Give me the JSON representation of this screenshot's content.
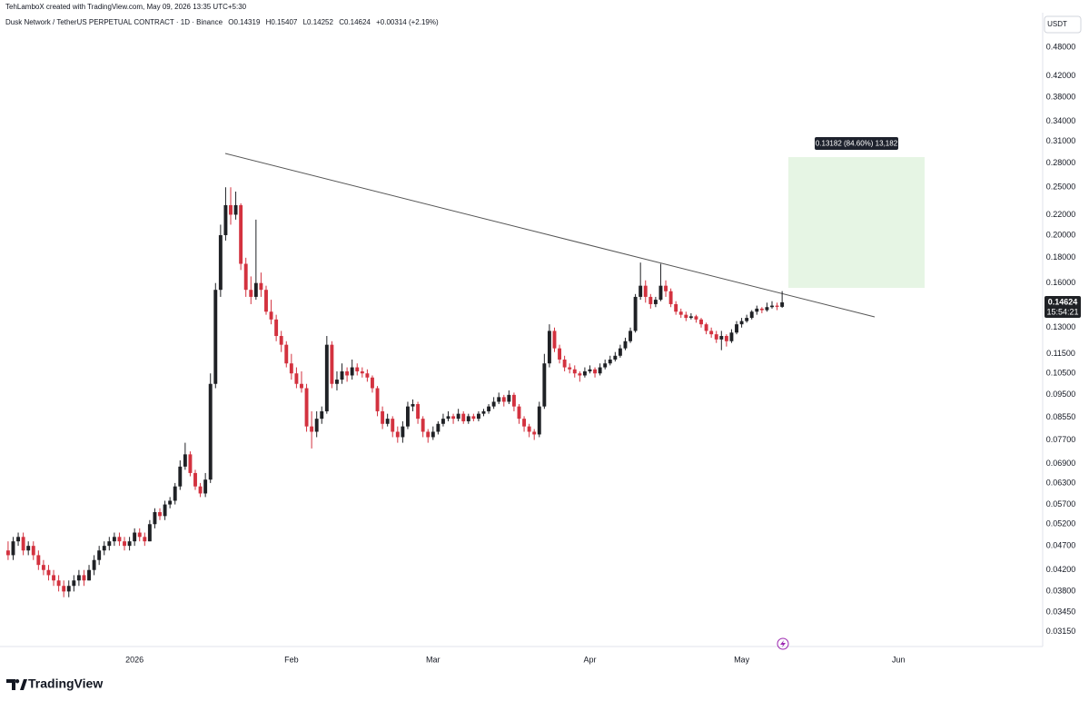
{
  "chart_data": {
    "type": "candlestick",
    "watermark": "TehLamboX created with TradingView.com, May 09, 2026 13:35 UTC+5:30",
    "title": "Dusk Network / TetherUS PERPETUAL CONTRACT · 1D · Binance",
    "legend_values": [
      "O0.14319",
      "H0.15407",
      "L0.14252",
      "C0.14624",
      "+0.00314 (+2.19%)"
    ],
    "currency": "USDT",
    "last_price_label": "0.14624",
    "countdown": "15:54:21",
    "measure_label": "0.13182 (84.60%) 13,182",
    "brand": "TradingView",
    "log_scale": true,
    "grid": false,
    "up_color": "#1f2125",
    "down_color": "#d3323f",
    "ylim": [
      0.0294,
      0.564
    ],
    "yticks": [
      {
        "value": 0.48,
        "label": "0.48000"
      },
      {
        "value": 0.42,
        "label": "0.42000"
      },
      {
        "value": 0.38,
        "label": "0.38000"
      },
      {
        "value": 0.34,
        "label": "0.34000"
      },
      {
        "value": 0.31,
        "label": "0.31000"
      },
      {
        "value": 0.28,
        "label": "0.28000"
      },
      {
        "value": 0.25,
        "label": "0.25000"
      },
      {
        "value": 0.22,
        "label": "0.22000"
      },
      {
        "value": 0.2,
        "label": "0.20000"
      },
      {
        "value": 0.18,
        "label": "0.18000"
      },
      {
        "value": 0.16,
        "label": "0.16000"
      },
      {
        "value": 0.13,
        "label": "0.13000"
      },
      {
        "value": 0.115,
        "label": "0.11500"
      },
      {
        "value": 0.105,
        "label": "0.10500"
      },
      {
        "value": 0.095,
        "label": "0.09500"
      },
      {
        "value": 0.0855,
        "label": "0.08550"
      },
      {
        "value": 0.077,
        "label": "0.07700"
      },
      {
        "value": 0.069,
        "label": "0.06900"
      },
      {
        "value": 0.063,
        "label": "0.06300"
      },
      {
        "value": 0.057,
        "label": "0.05700"
      },
      {
        "value": 0.052,
        "label": "0.05200"
      },
      {
        "value": 0.047,
        "label": "0.04700"
      },
      {
        "value": 0.042,
        "label": "0.04200"
      },
      {
        "value": 0.038,
        "label": "0.03800"
      },
      {
        "value": 0.0345,
        "label": "0.03450"
      },
      {
        "value": 0.0315,
        "label": "0.03150"
      }
    ],
    "xlim": [
      -1.6,
      204.5
    ],
    "xticks": [
      {
        "value": 25,
        "label": "2026"
      },
      {
        "value": 56,
        "label": "Feb"
      },
      {
        "value": 84,
        "label": "Mar"
      },
      {
        "value": 115,
        "label": "Apr"
      },
      {
        "value": 145,
        "label": "May"
      },
      {
        "value": 176,
        "label": "Jun"
      }
    ],
    "ohlc": [
      [
        0.046,
        0.048,
        0.044,
        0.045
      ],
      [
        0.045,
        0.049,
        0.044,
        0.048
      ],
      [
        0.048,
        0.05,
        0.047,
        0.049
      ],
      [
        0.049,
        0.05,
        0.045,
        0.046
      ],
      [
        0.046,
        0.048,
        0.045,
        0.047
      ],
      [
        0.047,
        0.048,
        0.044,
        0.045
      ],
      [
        0.045,
        0.046,
        0.042,
        0.043
      ],
      [
        0.043,
        0.044,
        0.041,
        0.042
      ],
      [
        0.042,
        0.043,
        0.04,
        0.041
      ],
      [
        0.041,
        0.042,
        0.039,
        0.04
      ],
      [
        0.04,
        0.041,
        0.038,
        0.039
      ],
      [
        0.039,
        0.04,
        0.037,
        0.038
      ],
      [
        0.038,
        0.04,
        0.037,
        0.039
      ],
      [
        0.039,
        0.041,
        0.038,
        0.04
      ],
      [
        0.04,
        0.042,
        0.039,
        0.041
      ],
      [
        0.041,
        0.042,
        0.039,
        0.04
      ],
      [
        0.04,
        0.043,
        0.04,
        0.042
      ],
      [
        0.042,
        0.045,
        0.041,
        0.044
      ],
      [
        0.044,
        0.047,
        0.043,
        0.046
      ],
      [
        0.046,
        0.048,
        0.045,
        0.047
      ],
      [
        0.047,
        0.049,
        0.046,
        0.048
      ],
      [
        0.048,
        0.05,
        0.047,
        0.049
      ],
      [
        0.049,
        0.05,
        0.047,
        0.048
      ],
      [
        0.048,
        0.049,
        0.046,
        0.047
      ],
      [
        0.047,
        0.049,
        0.046,
        0.048
      ],
      [
        0.048,
        0.051,
        0.047,
        0.05
      ],
      [
        0.05,
        0.051,
        0.048,
        0.049
      ],
      [
        0.049,
        0.05,
        0.047,
        0.048
      ],
      [
        0.048,
        0.053,
        0.048,
        0.052
      ],
      [
        0.052,
        0.056,
        0.051,
        0.055
      ],
      [
        0.055,
        0.056,
        0.053,
        0.054
      ],
      [
        0.054,
        0.058,
        0.053,
        0.057
      ],
      [
        0.057,
        0.059,
        0.056,
        0.058
      ],
      [
        0.058,
        0.063,
        0.057,
        0.062
      ],
      [
        0.062,
        0.07,
        0.061,
        0.068
      ],
      [
        0.068,
        0.076,
        0.067,
        0.072
      ],
      [
        0.072,
        0.073,
        0.065,
        0.066
      ],
      [
        0.066,
        0.067,
        0.061,
        0.062
      ],
      [
        0.062,
        0.063,
        0.059,
        0.06
      ],
      [
        0.06,
        0.066,
        0.059,
        0.064
      ],
      [
        0.064,
        0.105,
        0.063,
        0.1
      ],
      [
        0.1,
        0.16,
        0.098,
        0.155
      ],
      [
        0.155,
        0.21,
        0.15,
        0.2
      ],
      [
        0.2,
        0.25,
        0.195,
        0.23
      ],
      [
        0.23,
        0.25,
        0.21,
        0.22
      ],
      [
        0.22,
        0.245,
        0.215,
        0.23
      ],
      [
        0.23,
        0.232,
        0.17,
        0.175
      ],
      [
        0.175,
        0.18,
        0.15,
        0.155
      ],
      [
        0.155,
        0.165,
        0.145,
        0.15
      ],
      [
        0.15,
        0.215,
        0.148,
        0.16
      ],
      [
        0.16,
        0.168,
        0.15,
        0.155
      ],
      [
        0.155,
        0.158,
        0.138,
        0.14
      ],
      [
        0.14,
        0.148,
        0.132,
        0.135
      ],
      [
        0.135,
        0.138,
        0.122,
        0.125
      ],
      [
        0.125,
        0.128,
        0.116,
        0.12
      ],
      [
        0.12,
        0.122,
        0.108,
        0.11
      ],
      [
        0.11,
        0.115,
        0.102,
        0.105
      ],
      [
        0.105,
        0.108,
        0.098,
        0.1
      ],
      [
        0.1,
        0.106,
        0.096,
        0.098
      ],
      [
        0.098,
        0.1,
        0.08,
        0.082
      ],
      [
        0.082,
        0.088,
        0.074,
        0.08
      ],
      [
        0.08,
        0.088,
        0.078,
        0.085
      ],
      [
        0.085,
        0.09,
        0.083,
        0.088
      ],
      [
        0.088,
        0.125,
        0.087,
        0.12
      ],
      [
        0.12,
        0.122,
        0.098,
        0.1
      ],
      [
        0.1,
        0.106,
        0.097,
        0.102
      ],
      [
        0.102,
        0.11,
        0.1,
        0.106
      ],
      [
        0.106,
        0.108,
        0.101,
        0.104
      ],
      [
        0.104,
        0.112,
        0.102,
        0.108
      ],
      [
        0.108,
        0.11,
        0.104,
        0.106
      ],
      [
        0.106,
        0.108,
        0.103,
        0.105
      ],
      [
        0.105,
        0.107,
        0.101,
        0.103
      ],
      [
        0.103,
        0.104,
        0.096,
        0.098
      ],
      [
        0.098,
        0.099,
        0.086,
        0.088
      ],
      [
        0.088,
        0.09,
        0.081,
        0.083
      ],
      [
        0.083,
        0.087,
        0.082,
        0.085
      ],
      [
        0.085,
        0.086,
        0.078,
        0.08
      ],
      [
        0.08,
        0.082,
        0.076,
        0.078
      ],
      [
        0.078,
        0.084,
        0.076,
        0.082
      ],
      [
        0.082,
        0.092,
        0.081,
        0.09
      ],
      [
        0.09,
        0.093,
        0.088,
        0.091
      ],
      [
        0.091,
        0.092,
        0.083,
        0.085
      ],
      [
        0.085,
        0.086,
        0.078,
        0.08
      ],
      [
        0.08,
        0.081,
        0.076,
        0.078
      ],
      [
        0.078,
        0.082,
        0.077,
        0.08
      ],
      [
        0.08,
        0.084,
        0.079,
        0.083
      ],
      [
        0.083,
        0.087,
        0.082,
        0.085
      ],
      [
        0.085,
        0.088,
        0.084,
        0.086
      ],
      [
        0.086,
        0.087,
        0.083,
        0.085
      ],
      [
        0.085,
        0.089,
        0.084,
        0.087
      ],
      [
        0.087,
        0.088,
        0.083,
        0.084
      ],
      [
        0.084,
        0.087,
        0.083,
        0.086
      ],
      [
        0.086,
        0.087,
        0.084,
        0.085
      ],
      [
        0.085,
        0.088,
        0.084,
        0.087
      ],
      [
        0.087,
        0.089,
        0.086,
        0.088
      ],
      [
        0.088,
        0.091,
        0.087,
        0.09
      ],
      [
        0.09,
        0.094,
        0.089,
        0.092
      ],
      [
        0.092,
        0.096,
        0.091,
        0.094
      ],
      [
        0.094,
        0.095,
        0.09,
        0.092
      ],
      [
        0.092,
        0.097,
        0.091,
        0.095
      ],
      [
        0.095,
        0.096,
        0.088,
        0.09
      ],
      [
        0.09,
        0.091,
        0.083,
        0.085
      ],
      [
        0.085,
        0.086,
        0.08,
        0.082
      ],
      [
        0.082,
        0.083,
        0.078,
        0.08
      ],
      [
        0.08,
        0.081,
        0.077,
        0.079
      ],
      [
        0.079,
        0.092,
        0.078,
        0.09
      ],
      [
        0.09,
        0.115,
        0.089,
        0.11
      ],
      [
        0.11,
        0.132,
        0.108,
        0.128
      ],
      [
        0.128,
        0.13,
        0.116,
        0.118
      ],
      [
        0.118,
        0.12,
        0.11,
        0.112
      ],
      [
        0.112,
        0.114,
        0.106,
        0.108
      ],
      [
        0.108,
        0.11,
        0.105,
        0.107
      ],
      [
        0.107,
        0.109,
        0.103,
        0.105
      ],
      [
        0.105,
        0.106,
        0.101,
        0.104
      ],
      [
        0.104,
        0.108,
        0.103,
        0.106
      ],
      [
        0.106,
        0.109,
        0.105,
        0.107
      ],
      [
        0.107,
        0.108,
        0.103,
        0.105
      ],
      [
        0.105,
        0.11,
        0.104,
        0.108
      ],
      [
        0.108,
        0.112,
        0.107,
        0.11
      ],
      [
        0.11,
        0.114,
        0.109,
        0.112
      ],
      [
        0.112,
        0.116,
        0.111,
        0.114
      ],
      [
        0.114,
        0.12,
        0.113,
        0.118
      ],
      [
        0.118,
        0.124,
        0.117,
        0.122
      ],
      [
        0.122,
        0.13,
        0.121,
        0.128
      ],
      [
        0.128,
        0.152,
        0.127,
        0.15
      ],
      [
        0.15,
        0.176,
        0.148,
        0.158
      ],
      [
        0.158,
        0.162,
        0.146,
        0.15
      ],
      [
        0.15,
        0.152,
        0.142,
        0.145
      ],
      [
        0.145,
        0.15,
        0.143,
        0.148
      ],
      [
        0.148,
        0.175,
        0.147,
        0.158
      ],
      [
        0.158,
        0.162,
        0.15,
        0.154
      ],
      [
        0.154,
        0.156,
        0.143,
        0.145
      ],
      [
        0.145,
        0.147,
        0.138,
        0.14
      ],
      [
        0.14,
        0.142,
        0.136,
        0.138
      ],
      [
        0.138,
        0.14,
        0.134,
        0.136
      ],
      [
        0.136,
        0.139,
        0.135,
        0.137
      ],
      [
        0.137,
        0.138,
        0.133,
        0.135
      ],
      [
        0.135,
        0.136,
        0.13,
        0.132
      ],
      [
        0.132,
        0.133,
        0.126,
        0.128
      ],
      [
        0.128,
        0.13,
        0.124,
        0.126
      ],
      [
        0.126,
        0.128,
        0.121,
        0.123
      ],
      [
        0.123,
        0.128,
        0.117,
        0.125
      ],
      [
        0.125,
        0.126,
        0.119,
        0.122
      ],
      [
        0.122,
        0.129,
        0.121,
        0.127
      ],
      [
        0.127,
        0.134,
        0.126,
        0.132
      ],
      [
        0.132,
        0.136,
        0.13,
        0.134
      ],
      [
        0.134,
        0.138,
        0.133,
        0.136
      ],
      [
        0.136,
        0.141,
        0.135,
        0.14
      ],
      [
        0.14,
        0.144,
        0.138,
        0.142
      ],
      [
        0.142,
        0.143,
        0.139,
        0.141
      ],
      [
        0.141,
        0.146,
        0.14,
        0.143
      ],
      [
        0.143,
        0.147,
        0.142,
        0.144
      ],
      [
        0.144,
        0.146,
        0.141,
        0.14319
      ],
      [
        0.14319,
        0.15407,
        0.14252,
        0.14624
      ]
    ]
  }
}
